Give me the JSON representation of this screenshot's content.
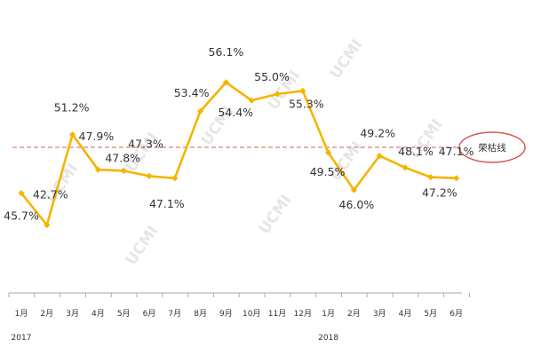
{
  "chart_data": {
    "type": "line",
    "title": "",
    "xlabel": "",
    "ylabel": "",
    "categories": [
      "1月",
      "2月",
      "3月",
      "4月",
      "5月",
      "6月",
      "7月",
      "8月",
      "9月",
      "10月",
      "11月",
      "12月",
      "1月",
      "2月",
      "3月",
      "4月",
      "5月",
      "6月"
    ],
    "year_labels": [
      {
        "text": "2017",
        "at_index": 0
      },
      {
        "text": "2018",
        "at_index": 12
      }
    ],
    "series": [
      {
        "values": [
          45.7,
          42.7,
          51.2,
          47.9,
          47.8,
          47.3,
          47.1,
          53.4,
          56.1,
          54.4,
          55.0,
          55.3,
          49.5,
          46.0,
          49.2,
          48.1,
          47.2,
          47.1
        ],
        "data_labels": [
          "45.7%",
          "42.7%",
          "51.2%",
          "47.9%",
          "47.8%",
          "47.3%",
          "47.1%",
          "53.4%",
          "56.1%",
          "54.4%",
          "55.0%",
          "55.3%",
          "49.5%",
          "46.0%",
          "49.2%",
          "48.1%",
          "47.2%",
          "47.1%"
        ],
        "color": "#f5b400"
      }
    ],
    "reference_line": {
      "value": 50,
      "label": "荣枯线",
      "color": "#e8948f"
    },
    "ylim": [
      40,
      58
    ],
    "grid": false,
    "legend": "none",
    "watermark": "UCMI",
    "watermark_color": "#e6e6e6",
    "axis_color": "#aaaaaa"
  }
}
